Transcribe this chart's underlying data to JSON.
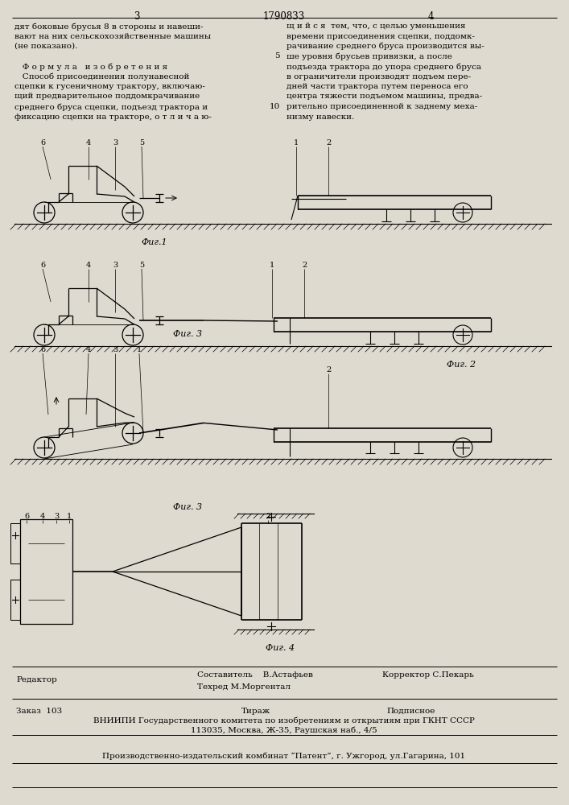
{
  "page_number_left": "3",
  "patent_number": "1790833",
  "page_number_right": "4",
  "bg_color": "#dedad0",
  "left_column_text": [
    "дят боковые брусья 8 в стороны и навеши-",
    "вают на них сельскохозяйственные машины",
    "(не показано).",
    "",
    "   Ф о р м у л а   и з о б р е т е н и я",
    "   Способ присоединения полунавесной",
    "сцепки к гусеничному трактору, включаю-",
    "щий предварительное поддомкрачивание",
    "среднего бруса сцепки, подъезд трактора и",
    "фиксацию сцепки на тракторе, о т л и ч а ю-"
  ],
  "right_column_text": [
    "щ и й с я  тем, что, с целью уменьшения",
    "времени присоединения сцепки, поддомк-",
    "рачивание среднего бруса производится вы-",
    "ше уровня брусьев привязки, а после",
    "подъезда трактора до упора среднего бруса",
    "в ограничители производят подъем пере-",
    "дней части трактора путем переноса его",
    "центра тяжести подъемом машины, предва-",
    "рительно присоединенной к заднему меха-",
    "низму навески."
  ],
  "line_number_5": "5",
  "line_number_10": "10",
  "fig1_label": "Фиг.1",
  "fig2_label": "Фиг. 2",
  "fig3_label": "Фиг. 3",
  "fig4_label": "Фиг. 4",
  "footer_sestavitel": "Составитель    В.Астафьев",
  "footer_tehred": "Техред М.Моргентал",
  "footer_korrektor": "Корректор С.Пекарь",
  "footer_redaktor": "Редактор",
  "footer_zakaz": "Заказ  103",
  "footer_tirazh": "Тираж",
  "footer_podpisnoe": "Подписное",
  "footer_vniiipi": "ВНИИПИ Государственного комитета по изобретениям и открытиям при ГКНТ СССР",
  "footer_address": "113035, Москва, Ж-35, Раушская наб., 4/5",
  "footer_production": "Производственно-издательский комбинат “Патент”, г. Ужгород, ул.Гагарина, 101"
}
